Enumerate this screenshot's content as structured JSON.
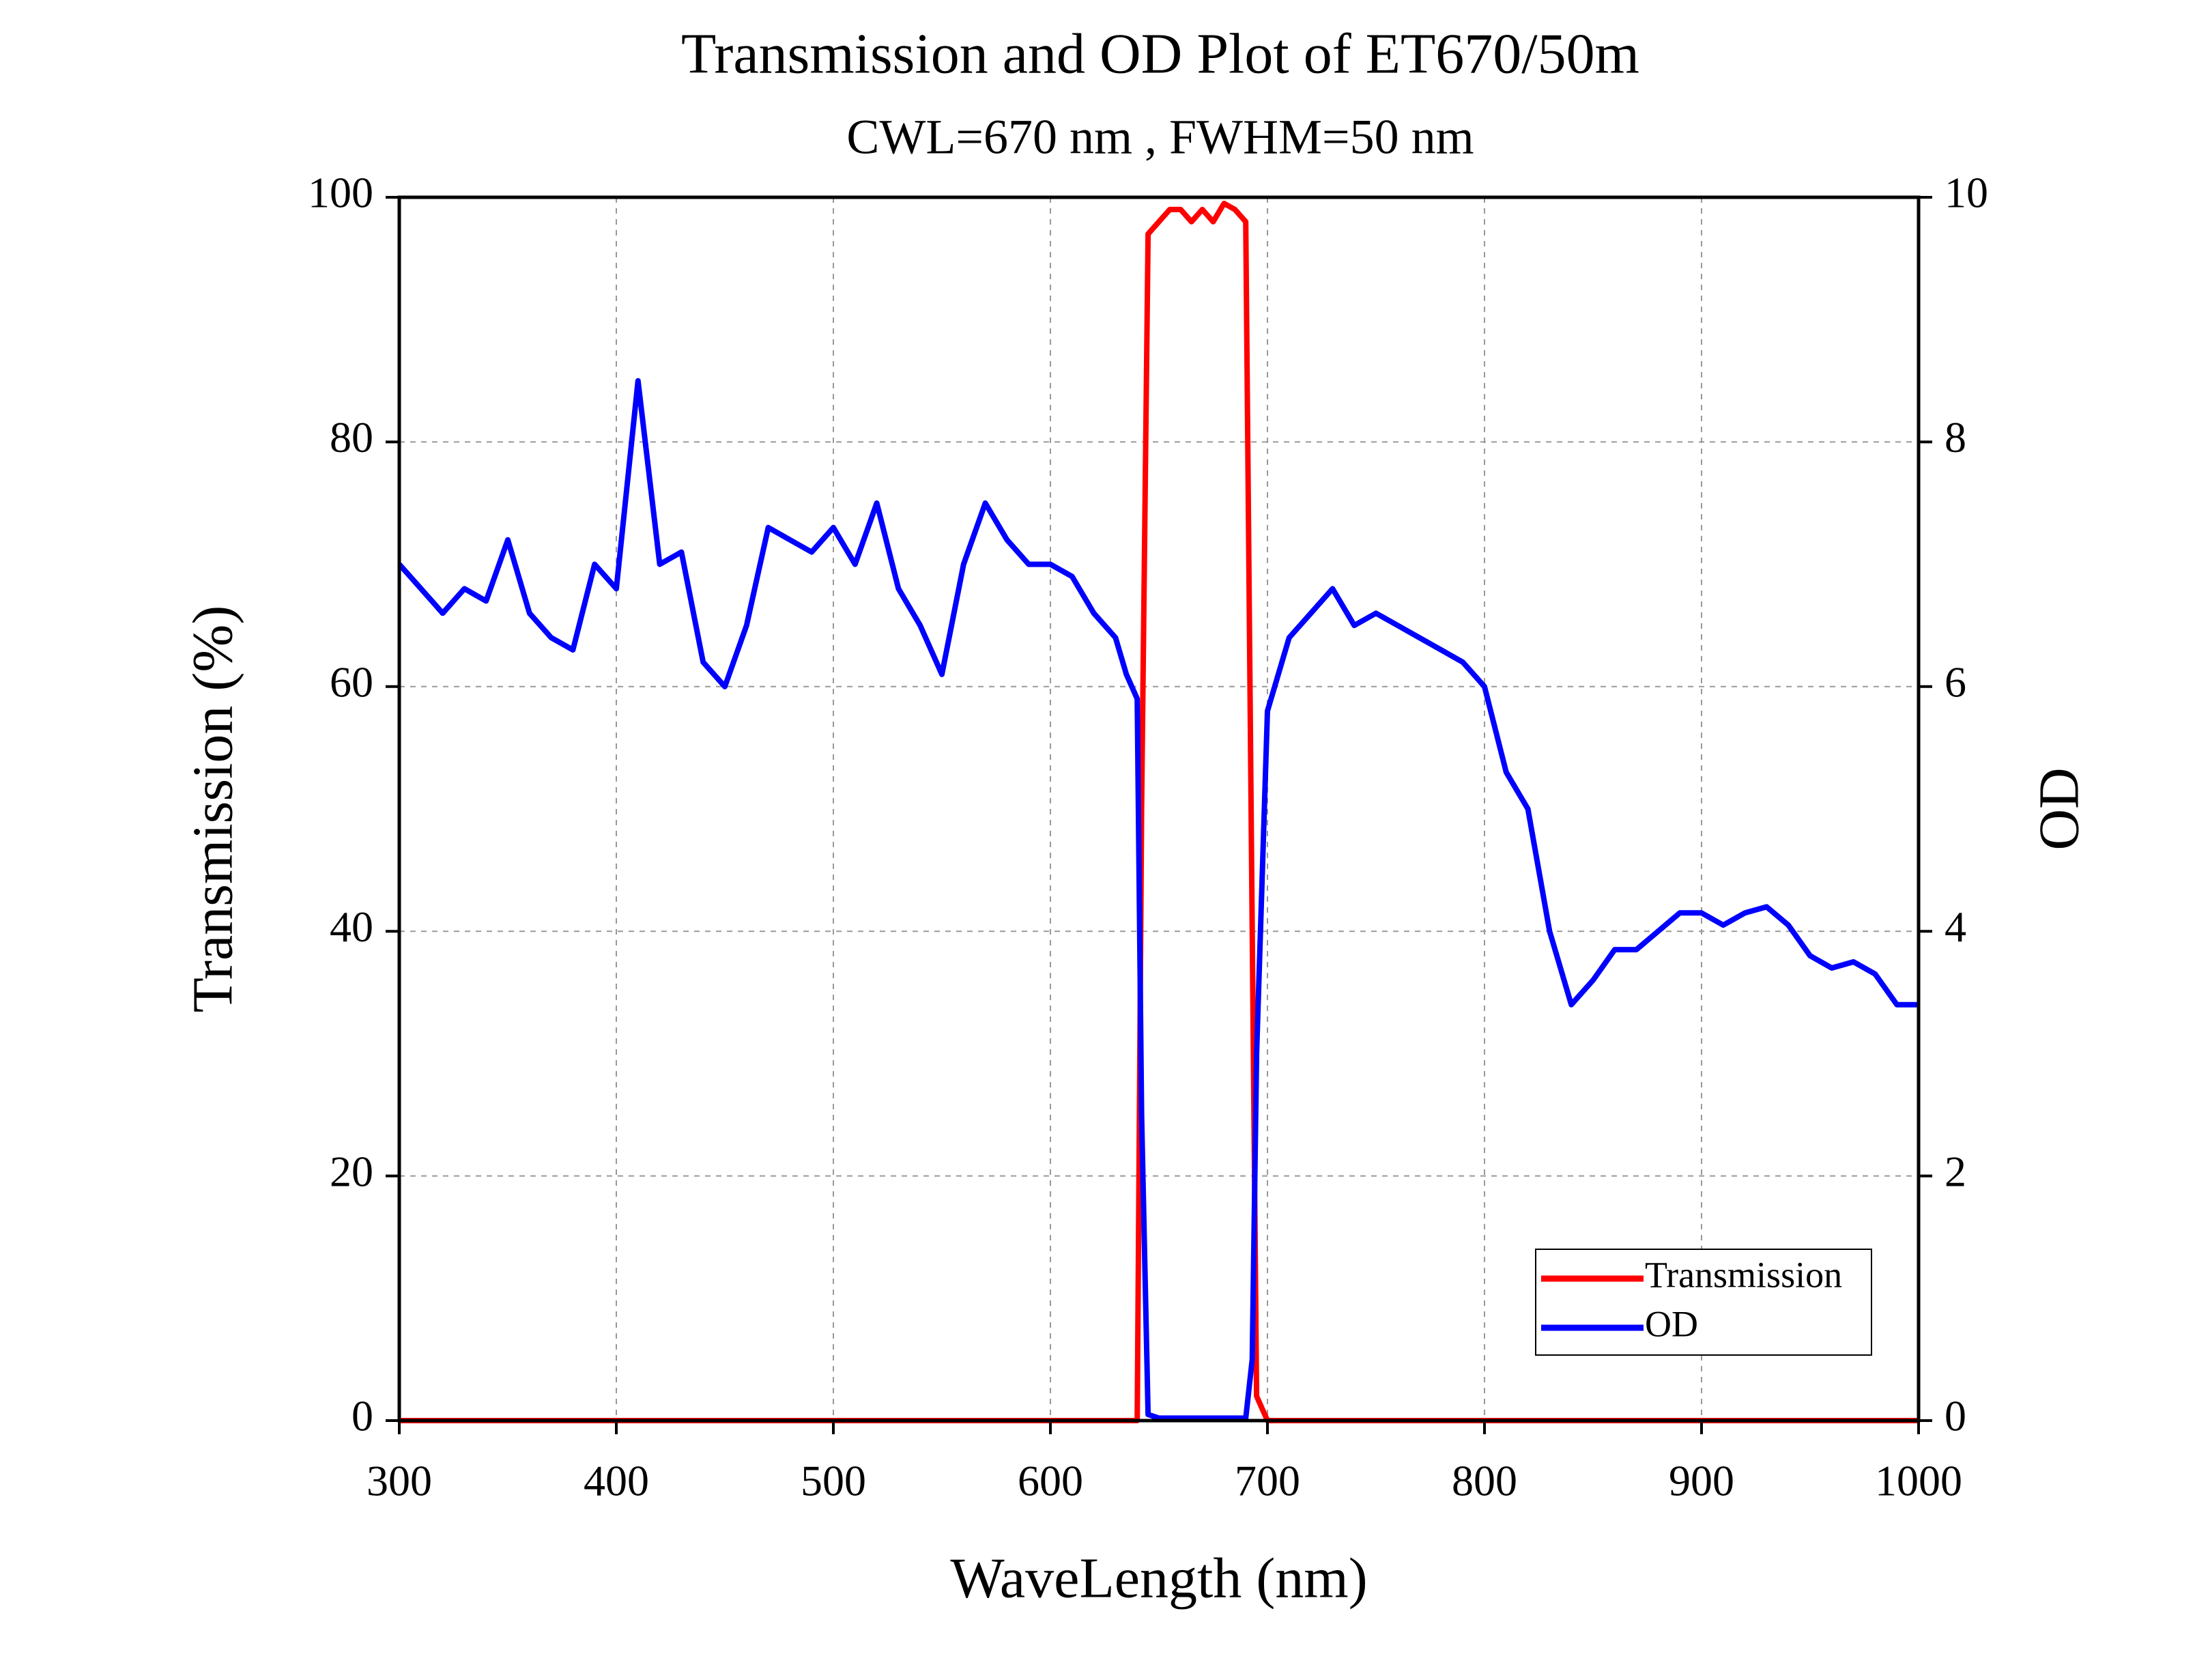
{
  "chart_data": {
    "type": "line",
    "title": "Transmission and OD Plot of ET670/50m",
    "subtitle": "CWL=670 nm , FWHM=50 nm",
    "xlabel": "WaveLength (nm)",
    "ylabel": "Transmission (%)",
    "y2label": "OD",
    "x": [
      300,
      310,
      320,
      330,
      340,
      350,
      360,
      370,
      380,
      390,
      400,
      410,
      420,
      430,
      440,
      450,
      460,
      470,
      480,
      490,
      500,
      510,
      520,
      530,
      540,
      550,
      560,
      570,
      580,
      590,
      600,
      610,
      620,
      630,
      635,
      640,
      642,
      645,
      650,
      655,
      660,
      665,
      670,
      675,
      680,
      685,
      690,
      693,
      695,
      700,
      710,
      720,
      730,
      740,
      750,
      760,
      770,
      780,
      790,
      800,
      810,
      820,
      830,
      840,
      850,
      860,
      870,
      880,
      890,
      900,
      910,
      920,
      930,
      940,
      950,
      960,
      970,
      980,
      990,
      1000
    ],
    "series": [
      {
        "name": "Transmission",
        "color": "#ff0000",
        "values": [
          0,
          0,
          0,
          0,
          0,
          0,
          0,
          0,
          0,
          0,
          0,
          0,
          0,
          0,
          0,
          0,
          0,
          0,
          0,
          0,
          0,
          0,
          0,
          0,
          0,
          0,
          0,
          0,
          0,
          0,
          0,
          0,
          0,
          0,
          0,
          0,
          50,
          97,
          98,
          99,
          99,
          98,
          99,
          98,
          99.5,
          99,
          98,
          40,
          2,
          0,
          0,
          0,
          0,
          0,
          0,
          0,
          0,
          0,
          0,
          0,
          0,
          0,
          0,
          0,
          0,
          0,
          0,
          0,
          0,
          0,
          0,
          0,
          0,
          0,
          0,
          0,
          0,
          0,
          0,
          0
        ]
      },
      {
        "name": "OD",
        "color": "#0000ff",
        "axis": "y2",
        "values": [
          7.0,
          6.8,
          6.6,
          6.8,
          6.7,
          7.2,
          6.6,
          6.4,
          6.3,
          7.0,
          6.8,
          8.5,
          7.0,
          7.1,
          6.2,
          6.0,
          6.5,
          7.3,
          7.2,
          7.1,
          7.3,
          7.0,
          7.5,
          6.8,
          6.5,
          6.1,
          7.0,
          7.5,
          7.2,
          7.0,
          7.0,
          6.9,
          6.6,
          6.4,
          6.1,
          5.9,
          2.5,
          0.05,
          0.02,
          0.02,
          0.02,
          0.02,
          0.02,
          0.02,
          0.02,
          0.02,
          0.02,
          0.5,
          3.0,
          5.8,
          6.4,
          6.6,
          6.8,
          6.5,
          6.6,
          6.5,
          6.4,
          6.3,
          6.2,
          6.0,
          5.3,
          5.0,
          4.0,
          3.4,
          3.6,
          3.85,
          3.85,
          4.0,
          4.15,
          4.15,
          4.05,
          4.15,
          4.2,
          4.05,
          3.8,
          3.7,
          3.75,
          3.65,
          3.4,
          3.4
        ]
      }
    ],
    "xlim": [
      300,
      1000
    ],
    "xticks": [
      300,
      400,
      500,
      600,
      700,
      800,
      900,
      1000
    ],
    "ylim": [
      0,
      100
    ],
    "yticks": [
      0,
      20,
      40,
      60,
      80,
      100
    ],
    "y2lim": [
      0,
      10
    ],
    "y2ticks": [
      0,
      2,
      4,
      6,
      8,
      10
    ],
    "grid": true,
    "legend": "lower right"
  }
}
